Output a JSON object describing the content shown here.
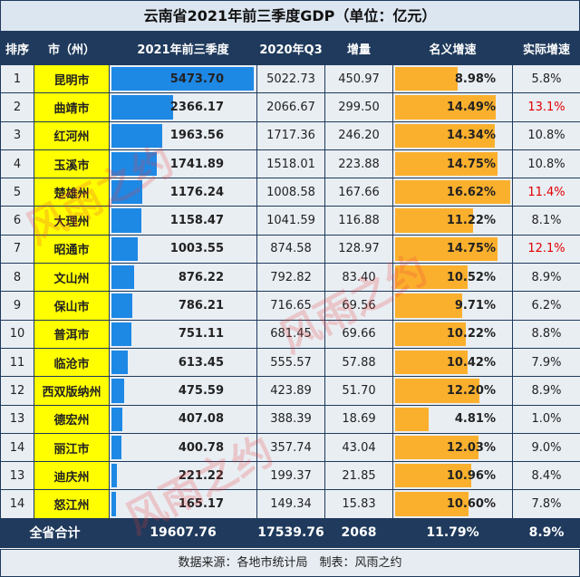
{
  "title": "云南省2021年前三季度GDP（单位：亿元）",
  "headers": [
    "排序",
    "市（州）",
    "2021年前三季度",
    "2020年Q3",
    "增量",
    "名义增速",
    "实际增速"
  ],
  "rows": [
    {
      "rank": "1",
      "city": "昆明市",
      "gdp2021": "5473.70",
      "gdp2020": "5022.73",
      "inc": "450.97",
      "nominal": "8.98%",
      "real": "5.8%",
      "real_red": false
    },
    {
      "rank": "2",
      "city": "曲靖市",
      "gdp2021": "2366.17",
      "gdp2020": "2066.67",
      "inc": "299.50",
      "nominal": "14.49%",
      "real": "13.1%",
      "real_red": true
    },
    {
      "rank": "3",
      "city": "红河州",
      "gdp2021": "1963.56",
      "gdp2020": "1717.36",
      "inc": "246.20",
      "nominal": "14.34%",
      "real": "10.8%",
      "real_red": false
    },
    {
      "rank": "4",
      "city": "玉溪市",
      "gdp2021": "1741.89",
      "gdp2020": "1518.01",
      "inc": "223.88",
      "nominal": "14.75%",
      "real": "10.8%",
      "real_red": false
    },
    {
      "rank": "5",
      "city": "楚雄州",
      "gdp2021": "1176.24",
      "gdp2020": "1008.58",
      "inc": "167.66",
      "nominal": "16.62%",
      "real": "11.4%",
      "real_red": true
    },
    {
      "rank": "6",
      "city": "大理州",
      "gdp2021": "1158.47",
      "gdp2020": "1041.59",
      "inc": "116.88",
      "nominal": "11.22%",
      "real": "8.1%",
      "real_red": false
    },
    {
      "rank": "7",
      "city": "昭通市",
      "gdp2021": "1003.55",
      "gdp2020": "874.58",
      "inc": "128.97",
      "nominal": "14.75%",
      "real": "12.1%",
      "real_red": true
    },
    {
      "rank": "8",
      "city": "文山州",
      "gdp2021": "876.22",
      "gdp2020": "792.82",
      "inc": "83.40",
      "nominal": "10.52%",
      "real": "8.9%",
      "real_red": false
    },
    {
      "rank": "9",
      "city": "保山市",
      "gdp2021": "786.21",
      "gdp2020": "716.65",
      "inc": "69.56",
      "nominal": "9.71%",
      "real": "6.2%",
      "real_red": false
    },
    {
      "rank": "10",
      "city": "普洱市",
      "gdp2021": "751.11",
      "gdp2020": "681.45",
      "inc": "69.66",
      "nominal": "10.22%",
      "real": "8.8%",
      "real_red": false
    },
    {
      "rank": "11",
      "city": "临沧市",
      "gdp2021": "613.45",
      "gdp2020": "555.57",
      "inc": "57.88",
      "nominal": "10.42%",
      "real": "7.9%",
      "real_red": false
    },
    {
      "rank": "12",
      "city": "西双版纳州",
      "gdp2021": "475.59",
      "gdp2020": "423.89",
      "inc": "51.70",
      "nominal": "12.20%",
      "real": "8.9%",
      "real_red": false
    },
    {
      "rank": "13",
      "city": "德宏州",
      "gdp2021": "407.08",
      "gdp2020": "388.39",
      "inc": "18.69",
      "nominal": "4.81%",
      "real": "1.0%",
      "real_red": false
    },
    {
      "rank": "14",
      "city": "丽江市",
      "gdp2021": "400.78",
      "gdp2020": "357.74",
      "inc": "43.04",
      "nominal": "12.03%",
      "real": "9.0%",
      "real_red": false
    },
    {
      "rank": "13",
      "city": "迪庆州",
      "gdp2021": "221.22",
      "gdp2020": "199.37",
      "inc": "21.85",
      "nominal": "10.96%",
      "real": "8.4%",
      "real_red": false
    },
    {
      "rank": "14",
      "city": "怒江州",
      "gdp2021": "165.17",
      "gdp2020": "149.34",
      "inc": "15.83",
      "nominal": "10.60%",
      "real": "7.8%",
      "real_red": false
    }
  ],
  "total": {
    "label": "全省合计",
    "gdp2021": "19607.76",
    "gdp2020": "17539.76",
    "inc": "2068",
    "nominal": "11.79%",
    "real": "8.9%"
  },
  "footer": "数据来源：各地市统计局　制表：风雨之约",
  "watermark": "风雨之约",
  "colors": {
    "header": "#1f3a5c",
    "gdp_bar": "#1e88e5",
    "nominal_bar": "#fbb02d",
    "city_bg": "#ffff00",
    "highlight": "#e00000"
  }
}
